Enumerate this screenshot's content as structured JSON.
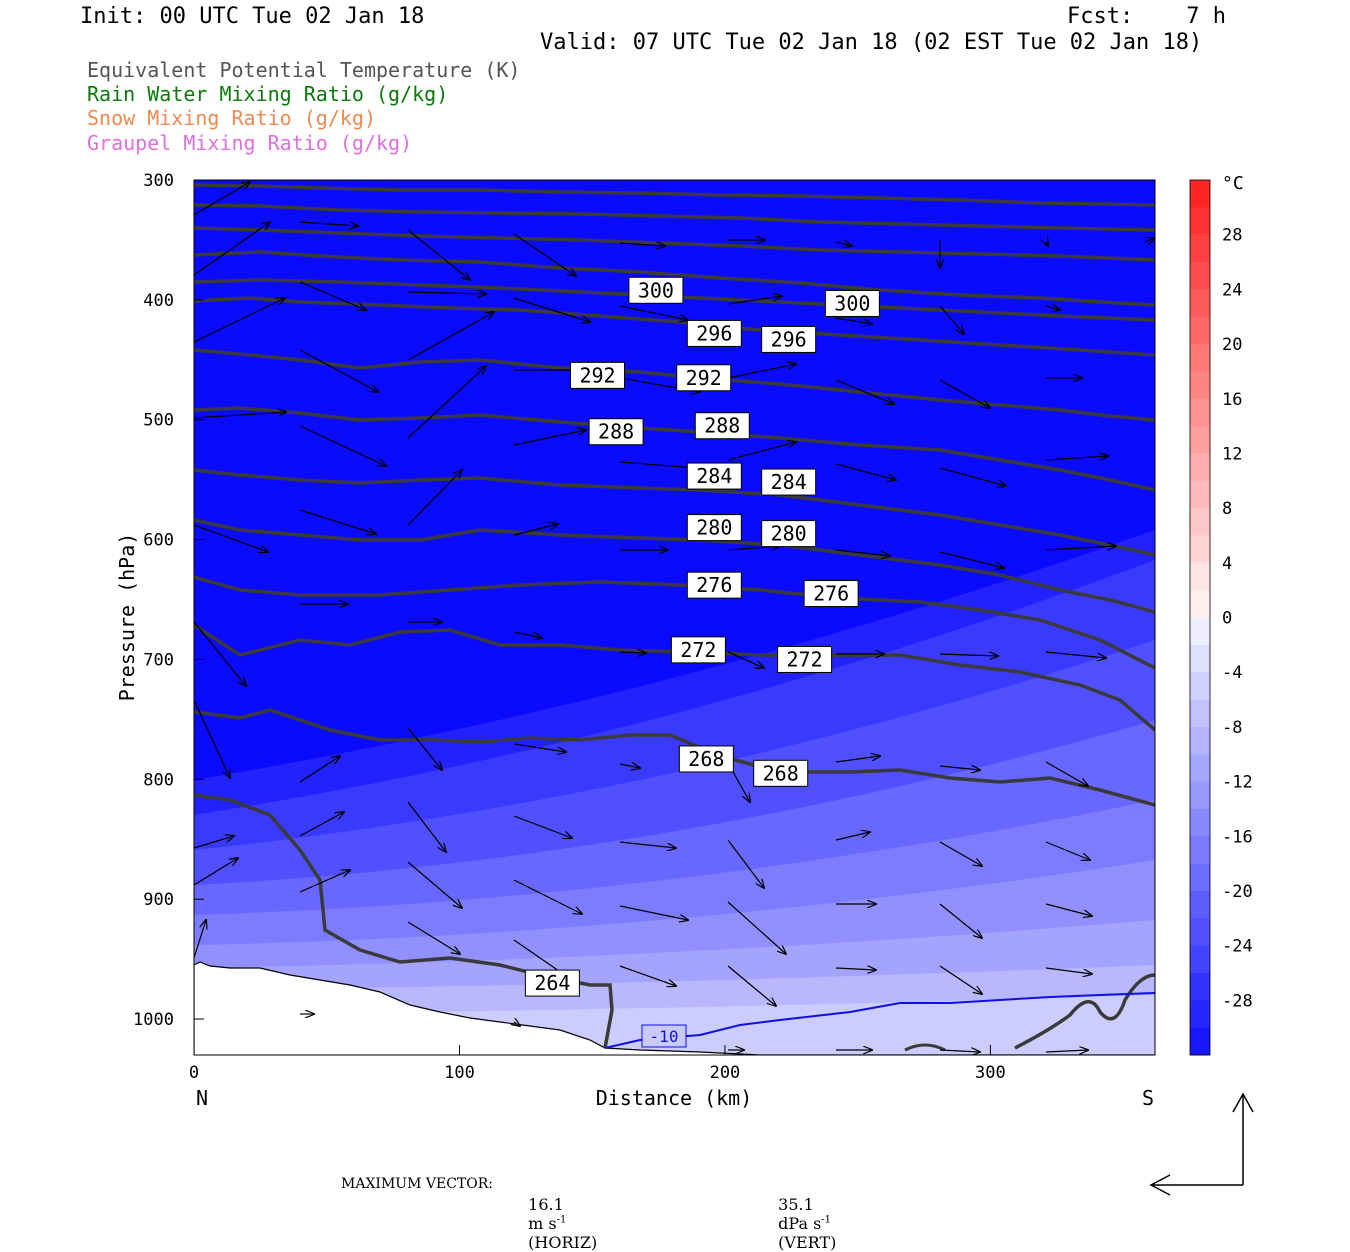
{
  "header": {
    "init": "Init: 00 UTC Tue 02 Jan 18",
    "fcst": "Fcst:    7 h",
    "valid": "Valid: 07 UTC Tue 02 Jan 18 (02 EST Tue 02 Jan 18)"
  },
  "fields": [
    {
      "label": "Equivalent Potential Temperature (K)",
      "color": "#555555"
    },
    {
      "label": "Rain Water Mixing Ratio (g/kg)",
      "color": "#0a7a0a"
    },
    {
      "label": "Snow Mixing Ratio (g/kg)",
      "color": "#f08a50"
    },
    {
      "label": "Graupel Mixing Ratio (g/kg)",
      "color": "#e070e0"
    }
  ],
  "footer": {
    "max_vector_label": "MAXIMUM VECTOR:",
    "horiz_value": "16.1",
    "horiz_unit": "m s",
    "horiz_tag": "(HORIZ)",
    "vert_value": "35.1",
    "vert_unit": "dPa s",
    "vert_tag": "(VERT)",
    "exponent": "-1"
  },
  "chart_data": {
    "type": "cross-section",
    "xlabel": "Distance (km)",
    "ylabel": "Pressure (hPa)",
    "x_ticks": [
      0,
      100,
      200,
      300
    ],
    "x_range": [
      0,
      362
    ],
    "y_ticks": [
      300,
      400,
      500,
      600,
      700,
      800,
      900,
      1000
    ],
    "y_range": [
      300,
      1030
    ],
    "left_end_label": "N",
    "right_end_label": "S",
    "colorbar": {
      "unit": "°C",
      "tick_labels": [
        "28",
        "24",
        "20",
        "16",
        "12",
        "8",
        "4",
        "0",
        "-4",
        "-8",
        "-12",
        "-16",
        "-20",
        "-24",
        "-28"
      ],
      "min": -32,
      "max": 32,
      "step": 4
    },
    "temperature_contour_label": "-10",
    "theta_e_contours": [
      {
        "value": 264,
        "labels": [
          [
            135,
            970
          ]
        ]
      },
      {
        "value": 268,
        "labels": [
          [
            193,
            783
          ],
          [
            221,
            795
          ]
        ]
      },
      {
        "value": 272,
        "labels": [
          [
            190,
            692
          ],
          [
            230,
            700
          ]
        ]
      },
      {
        "value": 276,
        "labels": [
          [
            196,
            638
          ],
          [
            240,
            645
          ]
        ]
      },
      {
        "value": 280,
        "labels": [
          [
            196,
            590
          ],
          [
            224,
            595
          ]
        ]
      },
      {
        "value": 284,
        "labels": [
          [
            196,
            547
          ],
          [
            224,
            552
          ]
        ]
      },
      {
        "value": 288,
        "labels": [
          [
            159,
            510
          ],
          [
            199,
            505
          ]
        ]
      },
      {
        "value": 292,
        "labels": [
          [
            152,
            463
          ],
          [
            192,
            465
          ]
        ]
      },
      {
        "value": 296,
        "labels": [
          [
            196,
            428
          ],
          [
            224,
            433
          ]
        ]
      },
      {
        "value": 300,
        "labels": [
          [
            174,
            392
          ],
          [
            248,
            403
          ]
        ]
      }
    ]
  }
}
